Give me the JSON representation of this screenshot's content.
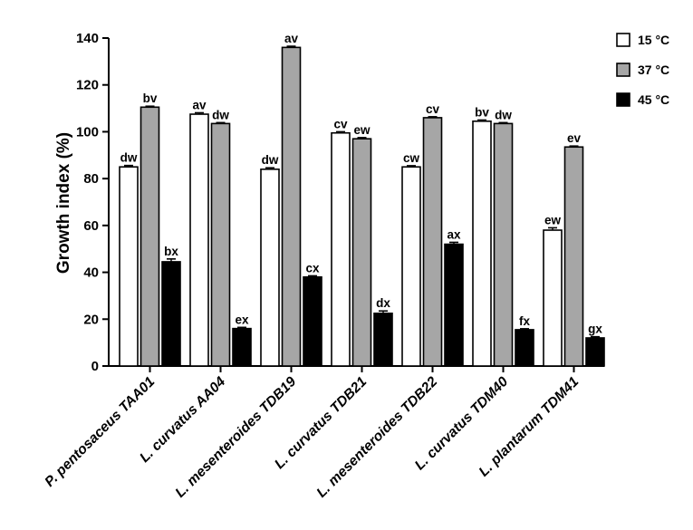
{
  "chart_data": {
    "type": "bar",
    "ylabel": "Growth index (%)",
    "xlabel": "",
    "ylim": [
      0,
      140
    ],
    "yticks": [
      0,
      20,
      40,
      60,
      80,
      100,
      120,
      140
    ],
    "legend_position": "top-right",
    "categories": [
      "P. pentosaceus TAA01",
      "L. curvatus AA04",
      "L. mesenteroides TDB19",
      "L. curvatus TDB21",
      "L. mesenteroides TDB22",
      "L. curvatus TDM40",
      "L. plantarum TDM41"
    ],
    "series": [
      {
        "name": "15 °C",
        "color": "#ffffff",
        "values": [
          85,
          107.5,
          84,
          99.5,
          85,
          104.5,
          58
        ],
        "errors": [
          0.6,
          0.6,
          0.6,
          0.5,
          0.5,
          0.5,
          1.0
        ],
        "labels": [
          "dw",
          "av",
          "dw",
          "cv",
          "cw",
          "bv",
          "ew"
        ]
      },
      {
        "name": "37 °C",
        "color": "#a6a6a6",
        "values": [
          110.5,
          103.5,
          136,
          97,
          106,
          103.5,
          93.5
        ],
        "errors": [
          0.4,
          0.4,
          0.5,
          0.5,
          0.4,
          0.4,
          0.4
        ],
        "labels": [
          "bv",
          "dw",
          "av",
          "ew",
          "cv",
          "dw",
          "ev"
        ]
      },
      {
        "name": "45 °C",
        "color": "#000000",
        "values": [
          44.5,
          16,
          38,
          22.5,
          52,
          15.5,
          12
        ],
        "errors": [
          1.2,
          0.5,
          0.5,
          1.0,
          0.8,
          0.4,
          0.5
        ],
        "labels": [
          "bx",
          "ex",
          "cx",
          "dx",
          "ax",
          "fx",
          "gx"
        ]
      }
    ]
  }
}
